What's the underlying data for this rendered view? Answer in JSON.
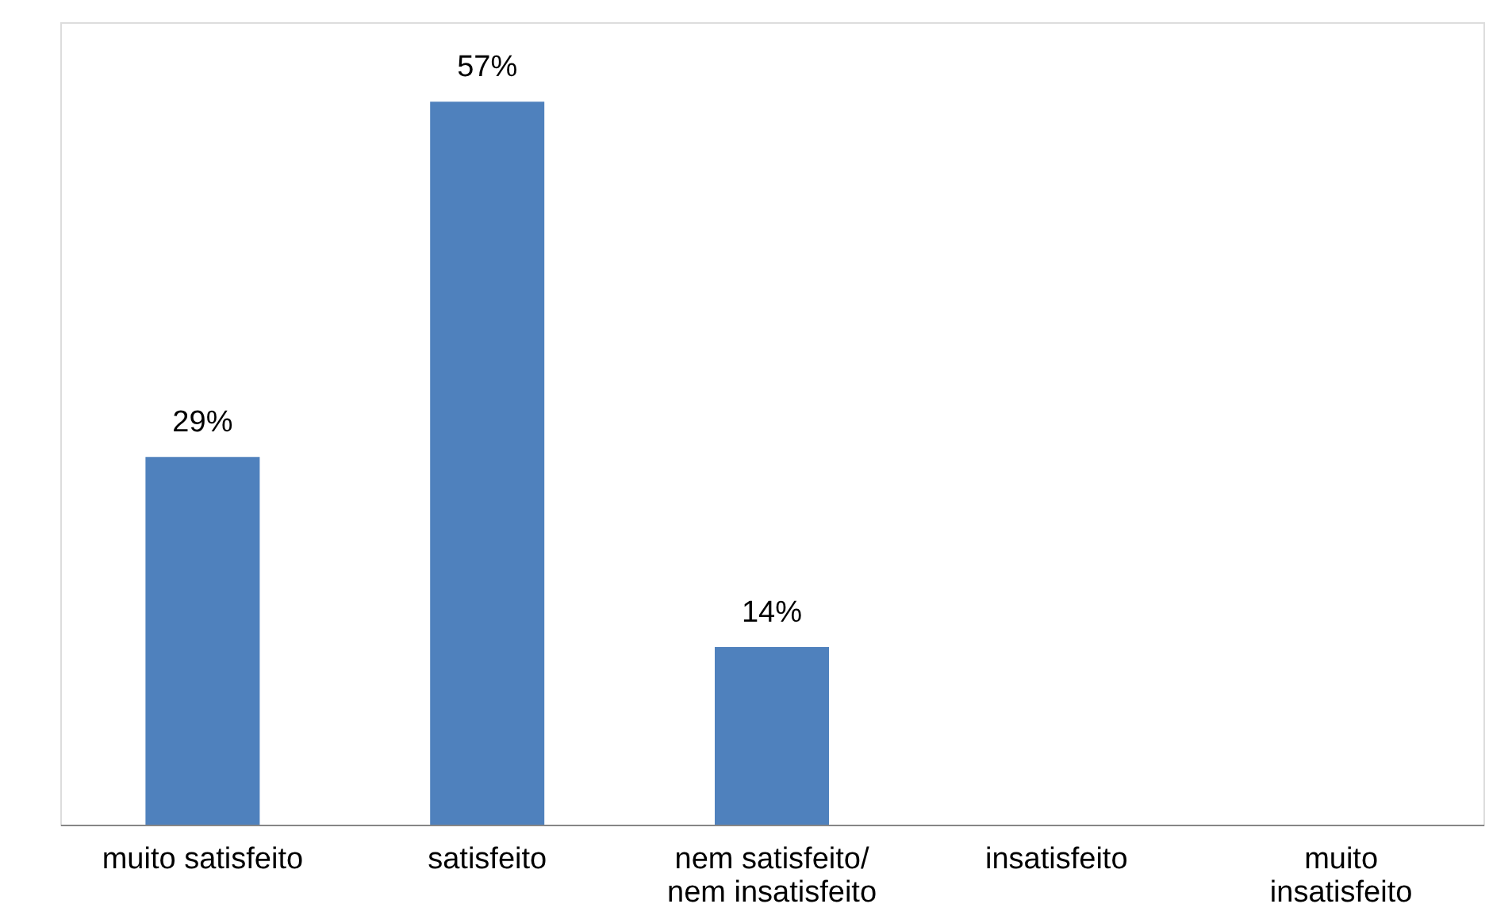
{
  "chart_data": {
    "type": "bar",
    "categories": [
      "muito satisfeito",
      "satisfeito",
      "nem satisfeito/ nem insatisfeito",
      "insatisfeito",
      "muito insatisfeito"
    ],
    "values": [
      29,
      57,
      14,
      0,
      0
    ],
    "value_labels": [
      "29%",
      "57%",
      "14%",
      null,
      null
    ],
    "color": "#4f81bd",
    "grid": false
  }
}
